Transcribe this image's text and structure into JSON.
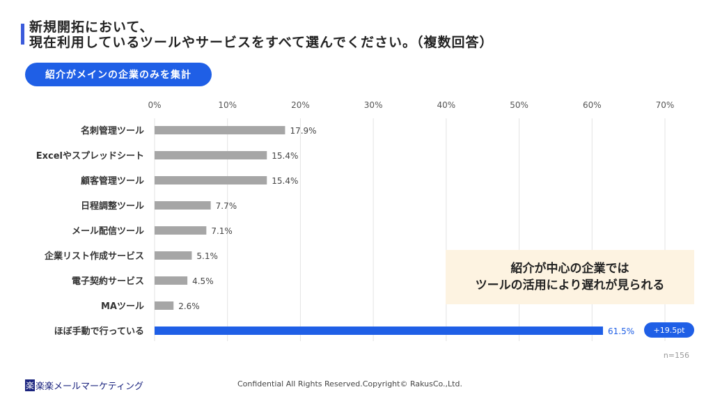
{
  "title": {
    "line1": "新規開拓において、",
    "line2": "現在利用しているツールやサービスをすべて選んでください。（複数回答）"
  },
  "filter_label": "紹介がメインの企業のみを集計",
  "chart_data": {
    "type": "bar",
    "orientation": "horizontal",
    "categories": [
      "名刺管理ツール",
      "Excelやスプレッドシート",
      "顧客管理ツール",
      "日程調整ツール",
      "メール配信ツール",
      "企業リスト作成サービス",
      "電子契約サービス",
      "MAツール",
      "ほぼ手動で行っている"
    ],
    "values": [
      17.9,
      15.4,
      15.4,
      7.7,
      7.1,
      5.1,
      4.5,
      2.6,
      61.5
    ],
    "data_labels": [
      "17.9%",
      "15.4%",
      "15.4%",
      "7.7%",
      "7.1%",
      "5.1%",
      "4.5%",
      "2.6%",
      "61.5%"
    ],
    "xlim": [
      0,
      70
    ],
    "x_ticks": [
      "0%",
      "10%",
      "20%",
      "30%",
      "40%",
      "50%",
      "60%",
      "70%"
    ],
    "grid": true,
    "colors": {
      "default": "#a6a6a6",
      "highlight": "#1f5fe6"
    },
    "highlight_index": 8,
    "badge": "+19.5pt"
  },
  "callout": {
    "line1": "紹介が中心の企業では",
    "line2": "ツールの活用により遅れが見られる"
  },
  "sample_size": "n=156",
  "footer": {
    "logo": "楽楽メールマーケティング",
    "logo_mark": "楽",
    "copyright": "Confidential All Rights Reserved.Copyright© RakusCo.,Ltd."
  }
}
